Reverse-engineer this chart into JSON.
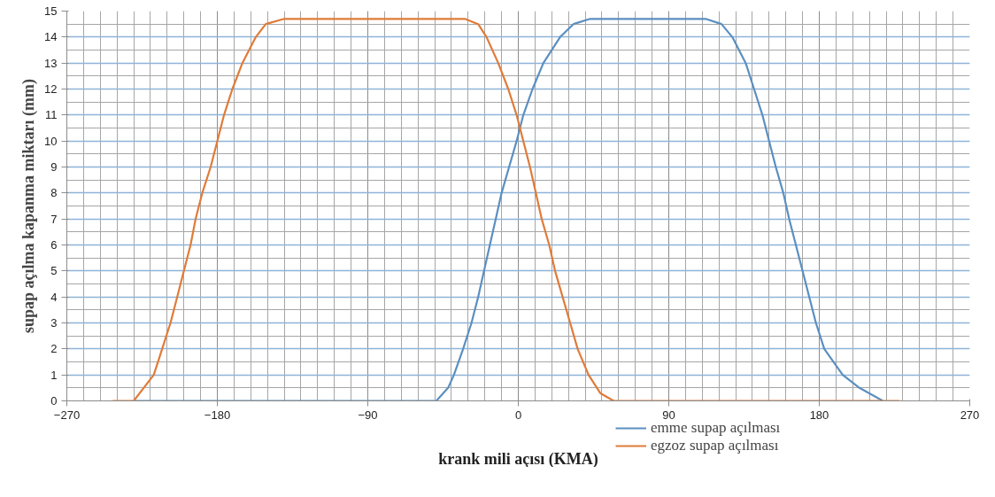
{
  "chart_data": {
    "type": "line",
    "xlabel": "krank mili açısı (KMA)",
    "ylabel": "supap açılma kapanma miktarı (mm)",
    "xlim": [
      -270,
      270
    ],
    "xticks": [
      -270,
      -180,
      -90,
      0,
      90,
      180,
      270
    ],
    "ylim": [
      0,
      15
    ],
    "yticks": [
      0,
      1,
      2,
      3,
      4,
      5,
      6,
      7,
      8,
      9,
      10,
      11,
      12,
      13,
      14,
      15
    ],
    "grid": true,
    "legend": "bottom right",
    "marker": "none",
    "line_style": "solid",
    "series": [
      {
        "name": "emme supap açılması",
        "color": "#5b8fc0",
        "x": [
          -230,
          -49,
          -42,
          -38.5,
          -33,
          -28,
          -24,
          -20.5,
          -17,
          -13.5,
          -10,
          -5.5,
          -1,
          3,
          8.5,
          15,
          25,
          33,
          43,
          112,
          121.5,
          128,
          136,
          141,
          146,
          150,
          154,
          158.5,
          162,
          166,
          170,
          174,
          178,
          183,
          194,
          204,
          218
        ],
        "values": [
          0,
          0,
          0.5,
          1,
          2,
          3,
          4,
          5,
          6,
          7,
          8,
          9,
          10,
          11,
          12,
          13,
          14,
          14.5,
          14.7,
          14.7,
          14.5,
          14,
          13,
          12,
          11,
          10,
          9,
          8,
          7,
          6,
          5,
          4,
          3,
          2,
          1,
          0.5,
          0
        ]
      },
      {
        "name": "egzoz supap açılması",
        "color": "#e07b39",
        "x": [
          -242.5,
          -230,
          -218,
          -213,
          -208,
          -204,
          -200,
          -196,
          -193,
          -189,
          -184,
          -180,
          -176,
          -171,
          -165,
          -157,
          -151,
          -140,
          -32,
          -24,
          -19,
          -12,
          -6,
          -1,
          3,
          7,
          10.5,
          14,
          18.5,
          22,
          26.5,
          31,
          35.5,
          42,
          49,
          57,
          228
        ],
        "values": [
          0,
          0,
          1,
          2,
          3,
          4,
          5,
          6,
          7,
          8,
          9,
          10,
          11,
          12,
          13,
          14,
          14.5,
          14.7,
          14.7,
          14.5,
          14,
          13,
          12,
          11,
          10,
          9,
          8,
          7,
          6,
          5,
          4,
          3,
          2,
          1,
          0.3,
          0,
          0
        ]
      }
    ]
  }
}
